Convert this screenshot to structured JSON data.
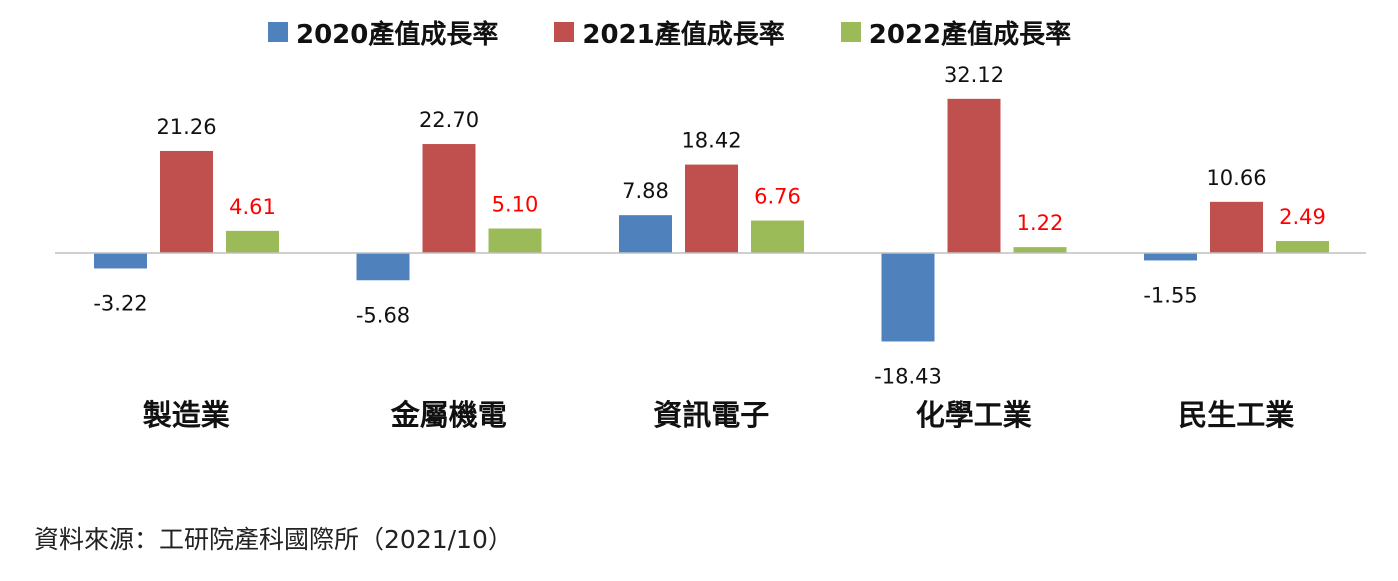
{
  "chart_data": {
    "type": "bar",
    "categories": [
      "製造業",
      "金屬機電",
      "資訊電子",
      "化學工業",
      "民生工業"
    ],
    "series": [
      {
        "name": "2020產值成長率",
        "color": "#4F81BD",
        "values": [
          -3.22,
          -5.68,
          7.88,
          -18.43,
          -1.55
        ],
        "label_color": "#111111"
      },
      {
        "name": "2021產值成長率",
        "color": "#C0504D",
        "values": [
          21.26,
          22.7,
          18.42,
          32.12,
          10.66
        ],
        "label_color": "#111111"
      },
      {
        "name": "2022產值成長率",
        "color": "#9BBB59",
        "values": [
          4.61,
          5.1,
          6.76,
          1.22,
          2.49
        ],
        "label_color": "#FF0000"
      }
    ],
    "ylim": [
      -22,
      38
    ],
    "grid": false,
    "legend_position": "top"
  },
  "source": "資料來源：工研院產科國際所（2021/10）"
}
